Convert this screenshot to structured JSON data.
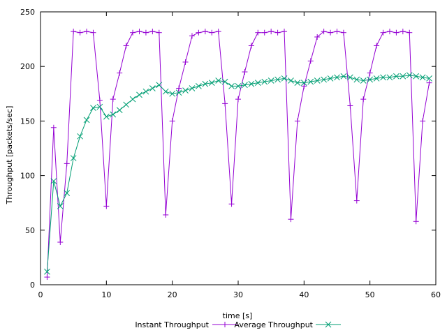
{
  "chart_data": {
    "type": "line",
    "title": "",
    "xlabel": "time [s]",
    "ylabel": "Throughput [packets/sec]",
    "xlim": [
      0,
      60
    ],
    "ylim": [
      0,
      250
    ],
    "xticks": [
      0,
      10,
      20,
      30,
      40,
      50,
      60
    ],
    "yticks": [
      0,
      50,
      100,
      150,
      200,
      250
    ],
    "grid": false,
    "legend_position": "bottom-center",
    "series": [
      {
        "name": "Instant Throughput",
        "color": "#9400d3",
        "marker": "plus",
        "x": [
          1,
          2,
          3,
          4,
          5,
          6,
          7,
          8,
          9,
          10,
          11,
          12,
          13,
          14,
          15,
          16,
          17,
          18,
          19,
          20,
          21,
          22,
          23,
          24,
          25,
          26,
          27,
          28,
          29,
          30,
          31,
          32,
          33,
          34,
          35,
          36,
          37,
          38,
          39,
          40,
          41,
          42,
          43,
          44,
          45,
          46,
          47,
          48,
          49,
          50,
          51,
          52,
          53,
          54,
          55,
          56,
          57,
          58,
          59
        ],
        "y": [
          7,
          144,
          39,
          111,
          232,
          231,
          232,
          231,
          169,
          72,
          170,
          194,
          219,
          231,
          232,
          231,
          232,
          231,
          64,
          150,
          180,
          204,
          228,
          231,
          232,
          231,
          232,
          166,
          74,
          170,
          195,
          219,
          231,
          231,
          232,
          231,
          232,
          60,
          150,
          182,
          205,
          227,
          232,
          231,
          232,
          231,
          164,
          77,
          170,
          194,
          219,
          231,
          232,
          231,
          232,
          231,
          58,
          150,
          185
        ]
      },
      {
        "name": "Average Throughput",
        "color": "#009e73",
        "marker": "cross",
        "x": [
          1,
          2,
          3,
          4,
          5,
          6,
          7,
          8,
          9,
          10,
          11,
          12,
          13,
          14,
          15,
          16,
          17,
          18,
          19,
          20,
          21,
          22,
          23,
          24,
          25,
          26,
          27,
          28,
          29,
          30,
          31,
          32,
          33,
          34,
          35,
          36,
          37,
          38,
          39,
          40,
          41,
          42,
          43,
          44,
          45,
          46,
          47,
          48,
          49,
          50,
          51,
          52,
          53,
          54,
          55,
          56,
          57,
          58,
          59
        ],
        "y": [
          12,
          95,
          72,
          84,
          116,
          136,
          151,
          162,
          163,
          154,
          156,
          160,
          165,
          170,
          174,
          177,
          180,
          183,
          177,
          175,
          176,
          178,
          180,
          182,
          184,
          185,
          187,
          186,
          182,
          182,
          183,
          184,
          185,
          186,
          187,
          188,
          189,
          187,
          185,
          185,
          186,
          187,
          188,
          189,
          190,
          191,
          190,
          188,
          187,
          188,
          189,
          190,
          190,
          191,
          191,
          192,
          191,
          190,
          189
        ]
      }
    ]
  }
}
